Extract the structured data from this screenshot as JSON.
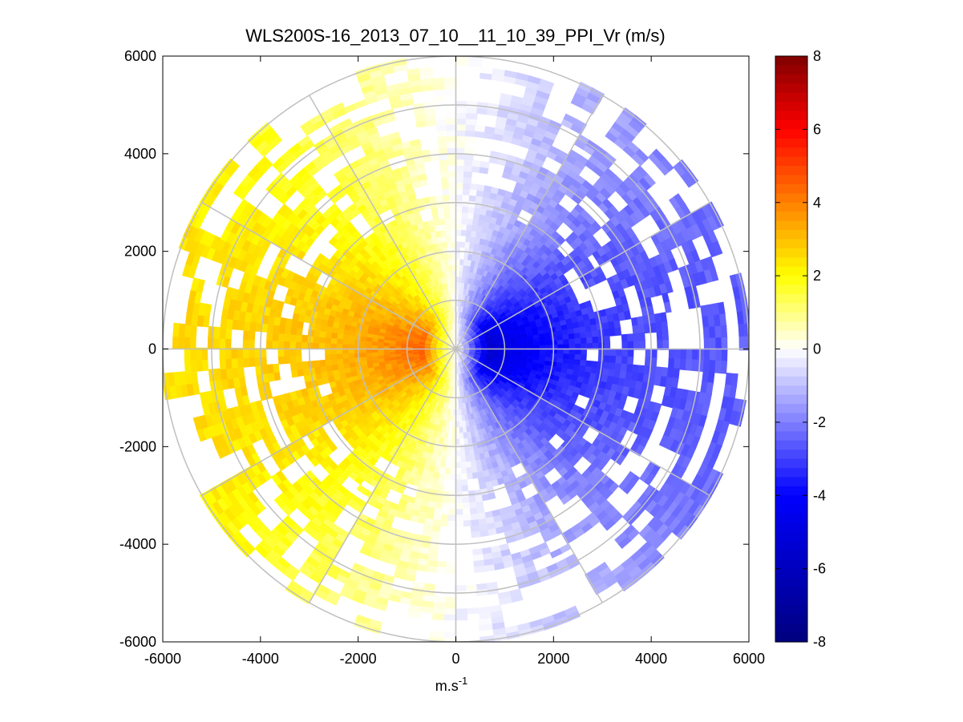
{
  "chart_data": {
    "type": "heatmap",
    "subtype": "polar-ppi",
    "title": "WLS200S-16_2013_07_10__11_10_39_PPI_Vr (m/s)",
    "xlabel_base": "m.s",
    "xlabel_sup": "-1",
    "ylabel": "",
    "xlim": [
      -6000,
      6000
    ],
    "ylim": [
      -6000,
      6000
    ],
    "xticks": [
      -6000,
      -4000,
      -2000,
      0,
      2000,
      4000,
      6000
    ],
    "yticks": [
      -6000,
      -4000,
      -2000,
      0,
      2000,
      4000,
      6000
    ],
    "xtick_labels": [
      "-6000",
      "-4000",
      "-2000",
      "0",
      "2000",
      "4000",
      "6000"
    ],
    "ytick_labels": [
      "6000",
      "4000",
      "2000",
      "0",
      "-2000",
      "-4000",
      "-6000"
    ],
    "max_range": 6000,
    "range_rings": [
      1000,
      2000,
      3000,
      4000,
      5000,
      6000
    ],
    "spoke_angles_deg": [
      0,
      30,
      60,
      90,
      120,
      150,
      180,
      210,
      240,
      270,
      300,
      330
    ],
    "velocity_field": {
      "quantity": "radial velocity Vr",
      "units": "m/s",
      "zero_line_azimuth_deg": 0,
      "negative_sector_center_deg": 90,
      "positive_sector_center_deg": 270,
      "peak_negative": -5.5,
      "peak_positive": 4.5,
      "peak_range_m": 700,
      "outer_speed_level": 2.5,
      "coverage_full_to_m": 2700,
      "coverage_partial_to_m": 6000
    },
    "colorbar": {
      "min": -8,
      "max": 8,
      "ticks": [
        8,
        6,
        4,
        2,
        0,
        -2,
        -4,
        -6,
        -8
      ],
      "tick_labels": [
        "8",
        "6",
        "4",
        "2",
        "0",
        "-2",
        "-4",
        "-6",
        "-8"
      ],
      "colormap": [
        "#00007f",
        "#0000ff",
        "#ffffff",
        "#ffff00",
        "#ff8000",
        "#ff0000",
        "#7f0000"
      ]
    }
  },
  "colors": {
    "grid": "#bfbfbf",
    "axes": "#000000",
    "background": "#ffffff"
  }
}
